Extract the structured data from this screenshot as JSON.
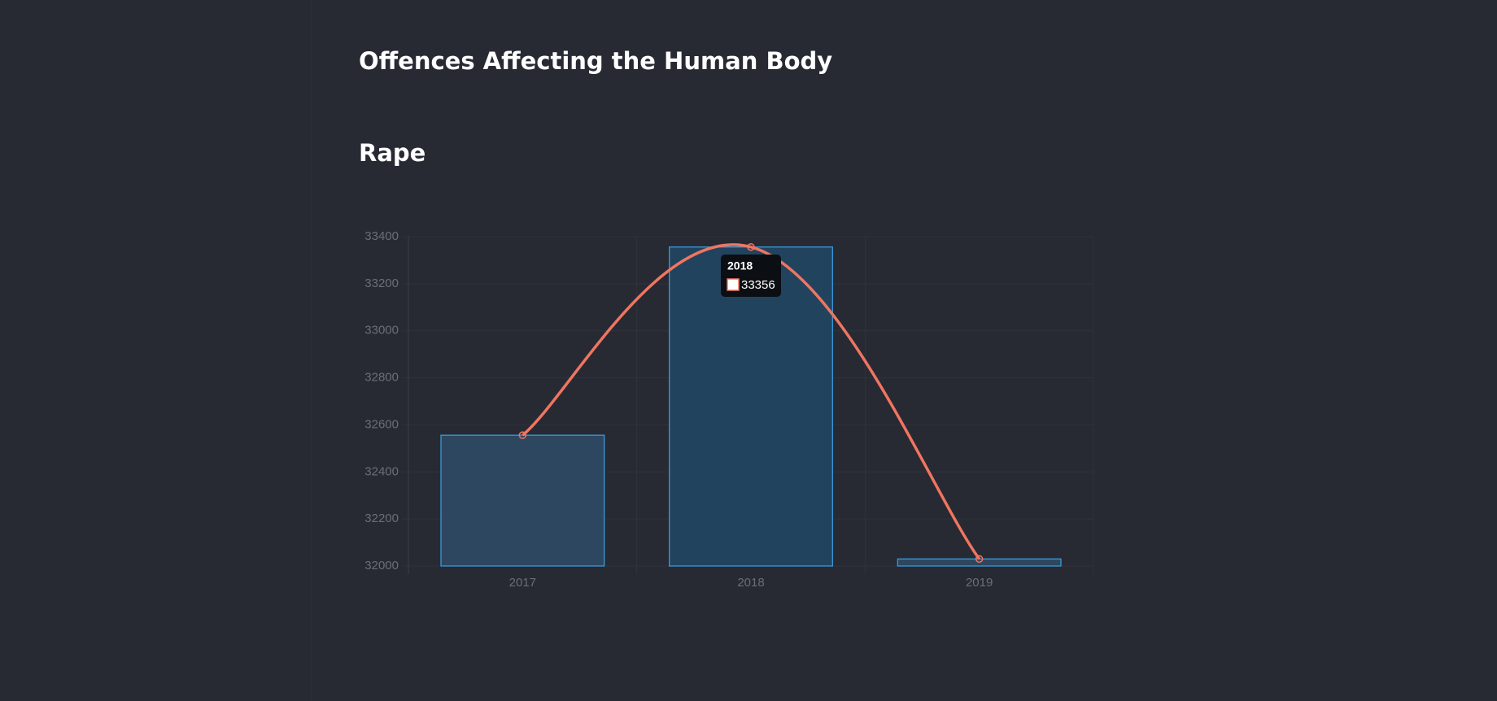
{
  "header": {
    "title": "Offences Affecting the Human Body"
  },
  "chart_data": {
    "type": "bar",
    "title": "Rape",
    "categories": [
      "2017",
      "2018",
      "2019"
    ],
    "values": [
      32556,
      33356,
      32030
    ],
    "color": "#2d4760",
    "line_color": "#f07560",
    "ylim": [
      32000,
      33400
    ],
    "yticks": [
      32000,
      32200,
      32400,
      32600,
      32800,
      33000,
      33200,
      33400
    ],
    "grid": true,
    "tooltip": {
      "category": "2018",
      "value": 33356
    }
  }
}
